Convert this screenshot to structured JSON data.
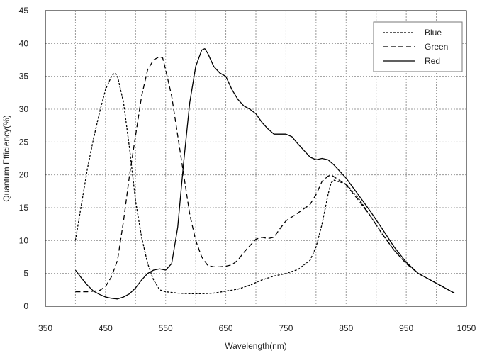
{
  "chart_data": {
    "type": "line",
    "title": "",
    "xlabel": "Wavelength(nm)",
    "ylabel": "Quantum Efficiency(%)",
    "xlim": [
      350,
      1050
    ],
    "ylim": [
      0,
      45
    ],
    "xticks": [
      350,
      450,
      550,
      650,
      750,
      850,
      950,
      1050
    ],
    "yticks": [
      0,
      5,
      10,
      15,
      20,
      25,
      30,
      35,
      40,
      45
    ],
    "grid": true,
    "legend_position": "top-right",
    "series": [
      {
        "name": "Blue",
        "style": "dotted",
        "x": [
          400,
          410,
          420,
          430,
          440,
          450,
          460,
          465,
          470,
          480,
          490,
          500,
          510,
          520,
          530,
          540,
          550,
          570,
          590,
          610,
          630,
          650,
          670,
          690,
          710,
          730,
          750,
          770,
          790,
          800,
          810,
          820,
          825,
          830,
          850,
          870,
          890,
          910,
          930,
          950,
          970,
          990,
          1010,
          1030
        ],
        "y": [
          10,
          15.5,
          21,
          25.5,
          29.5,
          33,
          35,
          35.5,
          35,
          31,
          24,
          16,
          10.5,
          6.5,
          4,
          2.5,
          2.2,
          2,
          1.9,
          1.9,
          2,
          2.3,
          2.6,
          3.2,
          4,
          4.6,
          5,
          5.6,
          7,
          9,
          12.5,
          17,
          18.8,
          19.2,
          18.6,
          16.5,
          13.8,
          11,
          8.5,
          6.5,
          5,
          4,
          3,
          2
        ]
      },
      {
        "name": "Green",
        "style": "dashed",
        "x": [
          400,
          420,
          440,
          450,
          460,
          470,
          480,
          490,
          500,
          510,
          520,
          530,
          540,
          545,
          550,
          560,
          570,
          580,
          590,
          600,
          610,
          620,
          630,
          640,
          650,
          660,
          670,
          680,
          690,
          700,
          710,
          720,
          730,
          740,
          750,
          760,
          770,
          790,
          800,
          810,
          820,
          825,
          830,
          850,
          870,
          890,
          910,
          930,
          950,
          970,
          990,
          1010,
          1030
        ],
        "y": [
          2.2,
          2.2,
          2.4,
          3,
          4.5,
          7,
          13,
          20,
          26,
          32,
          36,
          37.5,
          38,
          37.8,
          36,
          32,
          26,
          20,
          14,
          10,
          7.5,
          6.2,
          6,
          6,
          6.1,
          6.3,
          7,
          8.2,
          9.2,
          10.2,
          10.5,
          10.3,
          10.5,
          11.8,
          13,
          13.6,
          14.2,
          15.5,
          17,
          19,
          19.8,
          20,
          19.7,
          18.5,
          16.2,
          13.8,
          11,
          8.5,
          6.5,
          5,
          4,
          3,
          2
        ]
      },
      {
        "name": "Red",
        "style": "solid",
        "x": [
          400,
          410,
          420,
          430,
          440,
          450,
          460,
          470,
          480,
          490,
          500,
          510,
          520,
          530,
          540,
          550,
          560,
          570,
          580,
          590,
          600,
          610,
          615,
          620,
          630,
          640,
          650,
          660,
          670,
          680,
          690,
          700,
          710,
          720,
          730,
          750,
          760,
          770,
          790,
          800,
          810,
          820,
          830,
          850,
          870,
          890,
          910,
          930,
          950,
          970,
          990,
          1010,
          1030
        ],
        "y": [
          5.5,
          4.3,
          3.2,
          2.3,
          1.8,
          1.4,
          1.2,
          1.1,
          1.4,
          1.9,
          2.8,
          4,
          5,
          5.5,
          5.7,
          5.5,
          6.5,
          12,
          22,
          31,
          36.5,
          39,
          39.2,
          38.5,
          36.5,
          35.5,
          35,
          33,
          31.5,
          30.5,
          30,
          29.3,
          28,
          27,
          26.2,
          26.2,
          25.8,
          24.7,
          22.7,
          22.3,
          22.5,
          22.3,
          21.5,
          19.5,
          17,
          14.5,
          11.8,
          9,
          6.7,
          5,
          4,
          3,
          2
        ]
      }
    ]
  }
}
